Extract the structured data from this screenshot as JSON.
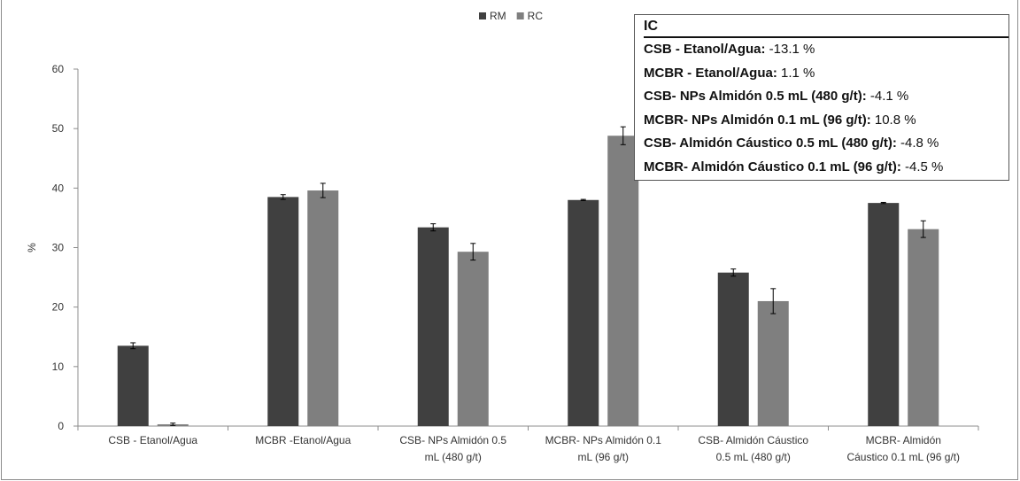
{
  "chart_data": {
    "type": "bar",
    "title": "",
    "xlabel": "",
    "ylabel": "%",
    "ylim": [
      0,
      60
    ],
    "yticks": [
      "0",
      "10",
      "20",
      "30",
      "40",
      "50",
      "60"
    ],
    "legend_position": "top-center",
    "categories": [
      [
        "CSB - Etanol/Agua"
      ],
      [
        "MCBR -Etanol/Agua"
      ],
      [
        "CSB- NPs Almidón 0.5",
        "mL (480 g/t)"
      ],
      [
        "MCBR- NPs Almidón 0.1",
        "mL (96 g/t)"
      ],
      [
        "CSB- Almidón Cáustico",
        "0.5 mL (480 g/t)"
      ],
      [
        "MCBR- Almidón",
        "Cáustico 0.1 mL (96 g/t)"
      ]
    ],
    "series": [
      {
        "name": "RM",
        "color": "#404040",
        "values": [
          13.5,
          38.5,
          33.4,
          38.0,
          25.8,
          37.5
        ],
        "errors": [
          0.5,
          0.4,
          0.6,
          0.1,
          0.6,
          0.1
        ]
      },
      {
        "name": "RC",
        "color": "#7f7f7f",
        "values": [
          0.3,
          39.6,
          29.3,
          48.8,
          21.0,
          33.1
        ],
        "errors": [
          0.2,
          1.2,
          1.4,
          1.5,
          2.1,
          1.4
        ]
      }
    ],
    "annotation": {
      "title": "IC",
      "items": [
        {
          "label": "CSB - Etanol/Agua:",
          "value": "-13.1 %"
        },
        {
          "label": "MCBR - Etanol/Agua:",
          "value": "1.1 %"
        },
        {
          "label": "CSB- NPs Almidón 0.5 mL (480 g/t):",
          "value": "-4.1 %"
        },
        {
          "label": "MCBR- NPs Almidón 0.1 mL (96 g/t):",
          "value": "10.8 %"
        },
        {
          "label": "CSB- Almidón Cáustico 0.5 mL (480 g/t):",
          "value": "-4.8 %"
        },
        {
          "label": "MCBR- Almidón Cáustico 0.1 mL (96 g/t):",
          "value": "-4.5 %"
        }
      ]
    }
  }
}
